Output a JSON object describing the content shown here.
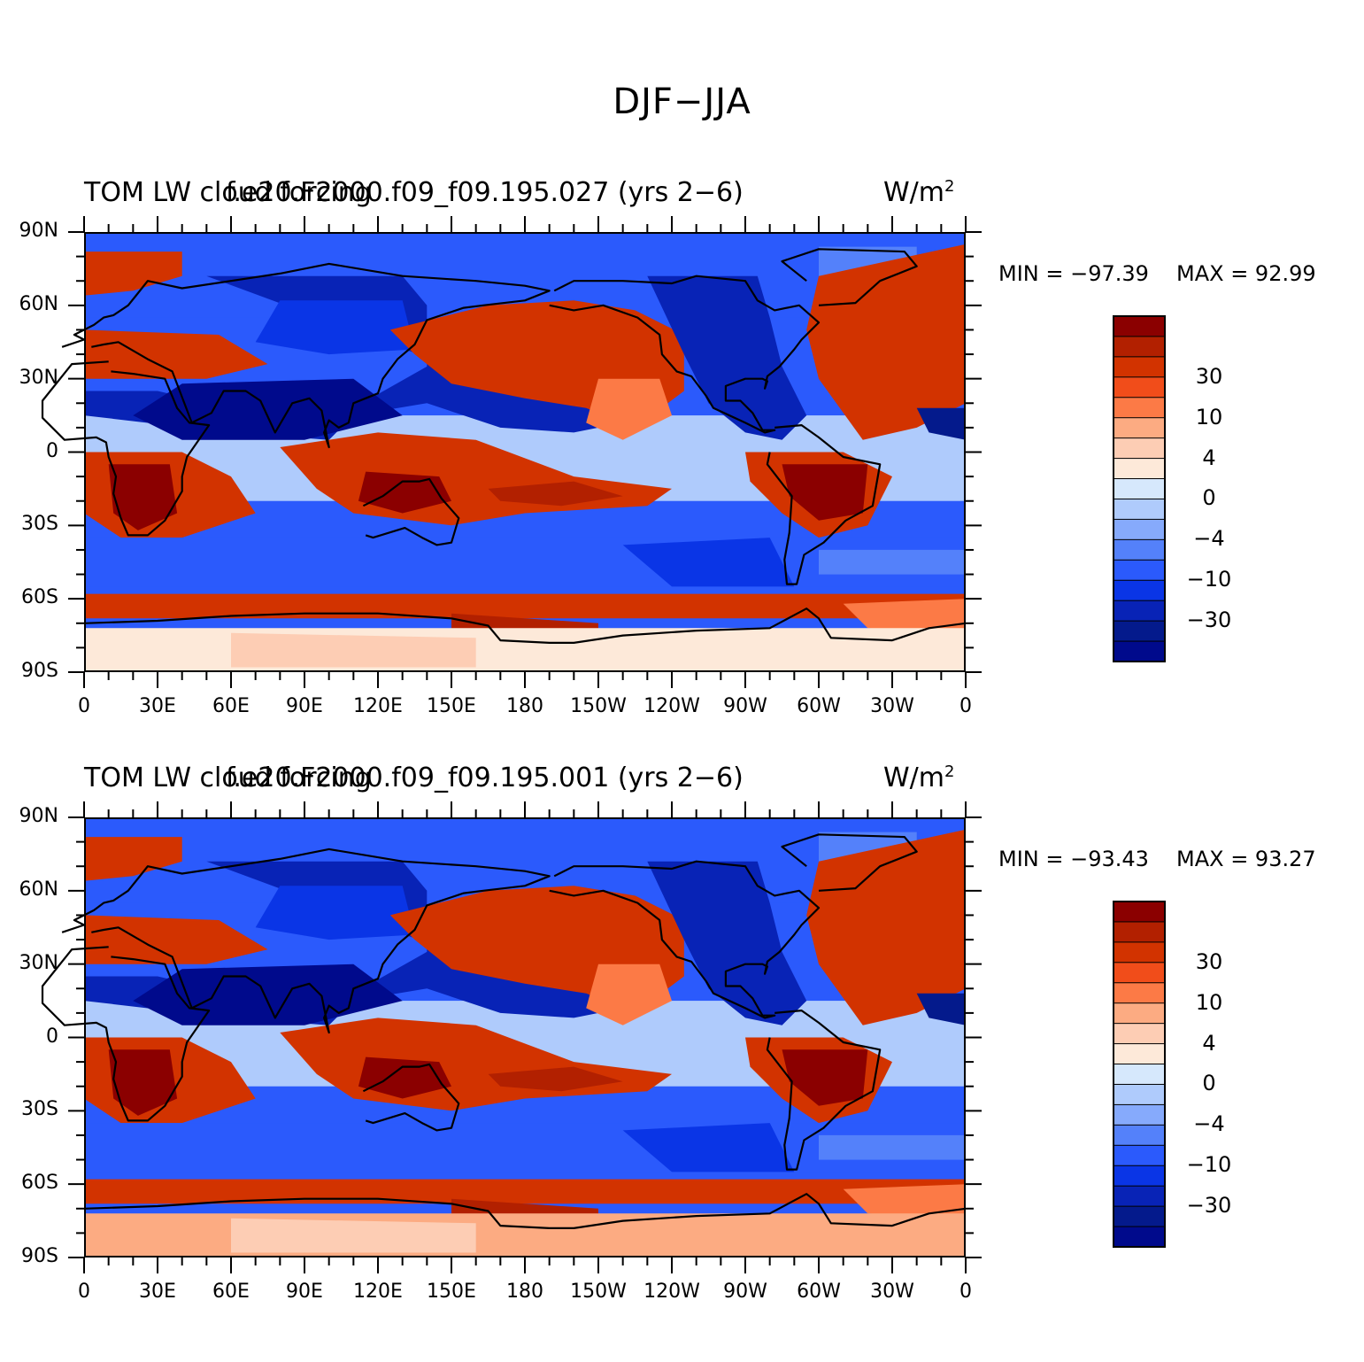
{
  "figure": {
    "title": "DJF−JJA"
  },
  "panels": [
    {
      "left_title": "TOM LW cloud forcing",
      "center_title": "f.e20.F2000.f09_f09.195.027 (yrs 2−6)",
      "units_label": "W/m",
      "units_sup": "2",
      "min_label": "MIN = −97.39",
      "max_label": "MAX =   92.99"
    },
    {
      "left_title": "TOM LW cloud forcing",
      "center_title": "f.e20.F2000.f09_f09.195.001 (yrs 2−6)",
      "units_label": "W/m",
      "units_sup": "2",
      "min_label": "MIN = −93.43",
      "max_label": "MAX =   93.27"
    }
  ],
  "axes": {
    "lat_labels": [
      "90N",
      "60N",
      "30N",
      "0",
      "30S",
      "60S",
      "90S"
    ],
    "lon_labels": [
      "0",
      "30E",
      "60E",
      "90E",
      "120E",
      "150E",
      "180",
      "150W",
      "120W",
      "90W",
      "60W",
      "30W",
      "0"
    ]
  },
  "colorbar": {
    "labels": [
      "30",
      "10",
      "4",
      "0",
      "−4",
      "−10",
      "−30"
    ],
    "colors": [
      "#8b0000",
      "#b22000",
      "#d23300",
      "#f14d1a",
      "#fc7a46",
      "#fcab82",
      "#fdcdb4",
      "#fde9d9",
      "#d6e8fc",
      "#afcbfc",
      "#86aafc",
      "#5481fa",
      "#2b5afc",
      "#0a35e6",
      "#0823b6",
      "#041a8c",
      "#000a8c"
    ]
  }
}
